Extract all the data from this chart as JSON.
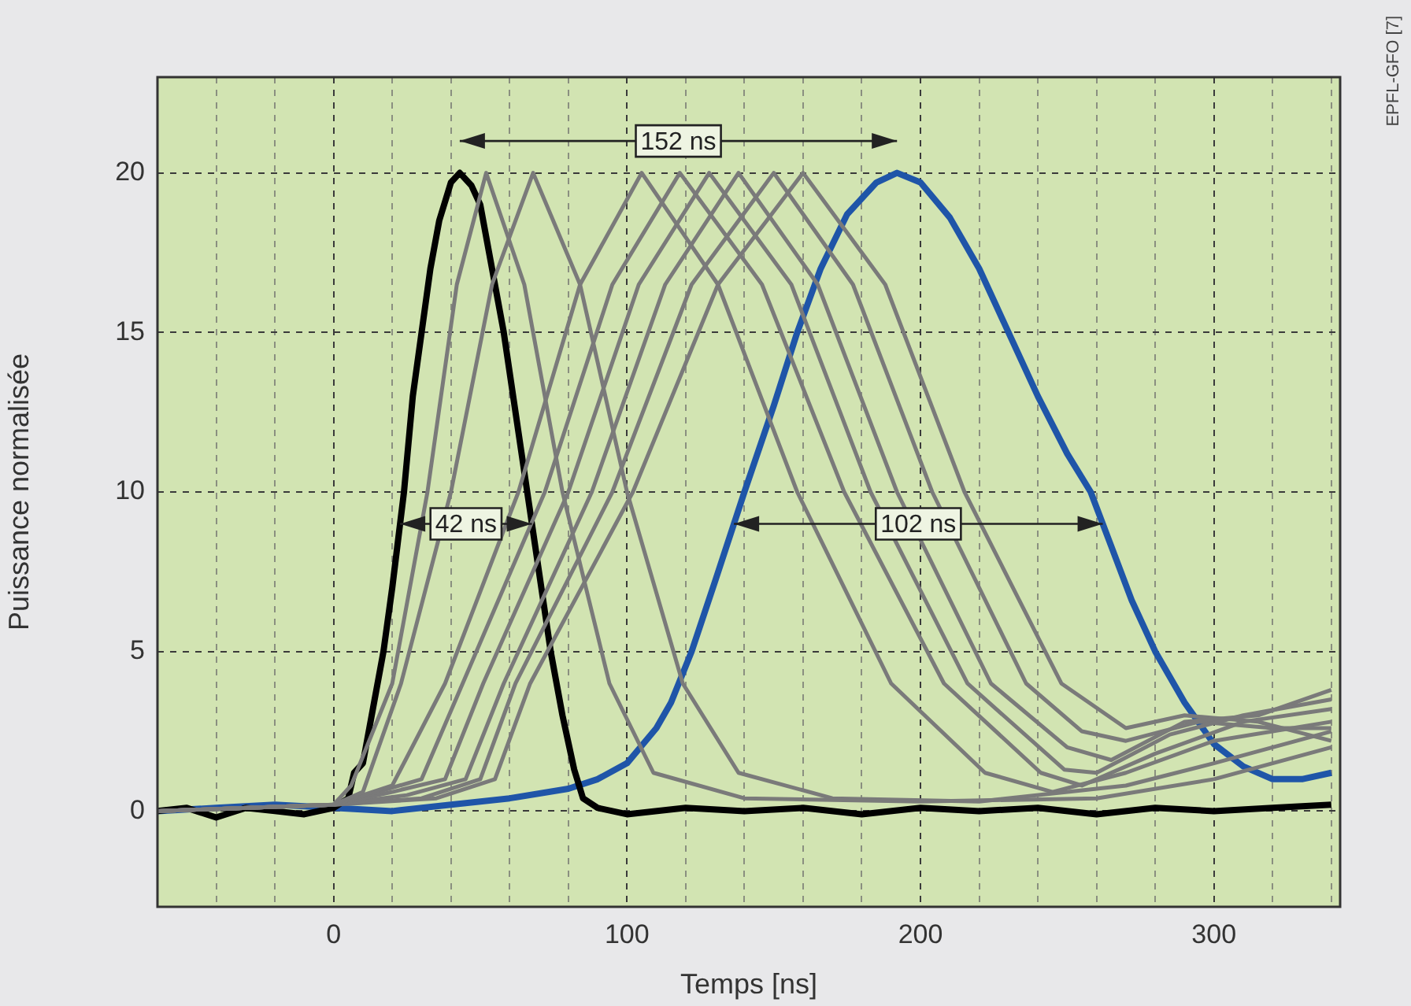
{
  "chart_data": {
    "type": "line",
    "xlabel": "Temps [ns]",
    "ylabel": "Puissance normalisée",
    "xlim": [
      -60,
      343
    ],
    "ylim": [
      -3,
      23
    ],
    "xticks": [
      {
        "value": -40,
        "label": null
      },
      {
        "value": -20,
        "label": null
      },
      0,
      {
        "value": 20,
        "label": null
      },
      {
        "value": 40,
        "label": null
      },
      {
        "value": 60,
        "label": null
      },
      {
        "value": 80,
        "label": null
      },
      100,
      {
        "value": 120,
        "label": null
      },
      {
        "value": 140,
        "label": null
      },
      {
        "value": 160,
        "label": null
      },
      {
        "value": 180,
        "label": null
      },
      200,
      {
        "value": 220,
        "label": null
      },
      {
        "value": 240,
        "label": null
      },
      {
        "value": 260,
        "label": null
      },
      {
        "value": 280,
        "label": null
      },
      300,
      {
        "value": 320,
        "label": null
      },
      {
        "value": 340,
        "label": null
      }
    ],
    "yticks": [
      0,
      5,
      10,
      15,
      20
    ],
    "grid": true,
    "legend": false,
    "series": [
      {
        "color": "#7a7a7a",
        "x": [
          -60,
          0,
          6,
          20,
          32,
          42,
          52,
          65,
          78,
          94,
          109,
          140,
          200,
          260,
          300,
          340
        ],
        "values": [
          0,
          0.2,
          0.8,
          4,
          10,
          16.5,
          20,
          16.5,
          10,
          4,
          1.2,
          0.4,
          0.3,
          0.4,
          1,
          2
        ]
      },
      {
        "color": "#7a7a7a",
        "x": [
          -60,
          0,
          10,
          23,
          40,
          54,
          68,
          84,
          100,
          119,
          138,
          170,
          220,
          270,
          300,
          340
        ],
        "values": [
          0,
          0.2,
          0.6,
          4,
          10,
          16.5,
          20,
          16.5,
          10,
          4,
          1.2,
          0.4,
          0.3,
          0.8,
          1.5,
          2.5
        ]
      },
      {
        "color": "#7a7a7a",
        "x": [
          -60,
          0,
          10,
          20,
          38,
          63,
          84,
          105,
          131,
          158,
          190,
          222,
          245,
          270,
          300,
          340
        ],
        "values": [
          0,
          0.2,
          0.5,
          0.8,
          4,
          10,
          16.5,
          20,
          16.5,
          10,
          4,
          1.2,
          0.6,
          1.2,
          2.2,
          2.8
        ]
      },
      {
        "color": "#7a7a7a",
        "x": [
          -60,
          0,
          15,
          30,
          44,
          72,
          95,
          118,
          146,
          174,
          208,
          241,
          255,
          280,
          310,
          340
        ],
        "values": [
          0,
          0.2,
          0.6,
          1,
          4,
          10,
          16.5,
          20,
          16.5,
          10,
          4,
          1.2,
          0.8,
          1.8,
          2.8,
          3.2
        ]
      },
      {
        "color": "#7a7a7a",
        "x": [
          -60,
          0,
          20,
          38,
          51,
          80,
          104,
          128,
          156,
          183,
          216,
          249,
          260,
          285,
          310,
          340
        ],
        "values": [
          0,
          0.2,
          0.6,
          1,
          4,
          10,
          16.5,
          20,
          16.5,
          10,
          4,
          1.3,
          1.2,
          2.4,
          3,
          3.5
        ]
      },
      {
        "color": "#7a7a7a",
        "x": [
          -60,
          0,
          25,
          45,
          58,
          88,
          113,
          138,
          165,
          192,
          224,
          250,
          265,
          290,
          315,
          340
        ],
        "values": [
          0,
          0.2,
          0.5,
          1,
          4,
          10,
          16.5,
          20,
          16.5,
          10,
          4,
          2,
          1.6,
          2.8,
          3,
          3.8
        ]
      },
      {
        "color": "#7a7a7a",
        "x": [
          -60,
          0,
          30,
          50,
          62,
          95,
          122,
          150,
          177,
          204,
          236,
          255,
          270,
          295,
          320,
          340
        ],
        "values": [
          0,
          0.2,
          0.4,
          1,
          4,
          10,
          16.5,
          20,
          16.5,
          10,
          4,
          2.5,
          2.2,
          2.8,
          2.6,
          2.6
        ]
      },
      {
        "color": "#7a7a7a",
        "x": [
          -60,
          0,
          35,
          55,
          67,
          102,
          131,
          160,
          188,
          215,
          248,
          270,
          290,
          315,
          340
        ],
        "values": [
          0,
          0.2,
          0.4,
          1,
          4,
          10,
          16.5,
          20,
          16.5,
          10,
          4,
          2.6,
          3,
          2.8,
          2.2
        ]
      },
      {
        "color": "#000000",
        "x": [
          -60,
          -50,
          -40,
          -30,
          -20,
          -10,
          0,
          5,
          7,
          10,
          13,
          17,
          20,
          24,
          27,
          30,
          33,
          36,
          40,
          43,
          47,
          50,
          54,
          58,
          62,
          66,
          70,
          74,
          78,
          82,
          85,
          90,
          100,
          120,
          140,
          160,
          180,
          200,
          220,
          240,
          260,
          280,
          300,
          320,
          340
        ],
        "values": [
          0,
          0.1,
          -0.2,
          0.1,
          0,
          -0.1,
          0.1,
          0.4,
          1.2,
          1.5,
          3,
          5,
          7,
          10,
          13,
          15,
          17,
          18.5,
          19.7,
          20,
          19.6,
          19,
          17,
          15,
          12.5,
          10,
          7.5,
          5,
          3,
          1.3,
          0.4,
          0.1,
          -0.1,
          0.1,
          0,
          0.1,
          -0.1,
          0.1,
          0,
          0.1,
          -0.1,
          0.1,
          0,
          0.1,
          0.2
        ]
      },
      {
        "color": "#1f55a8",
        "x": [
          -60,
          -40,
          -20,
          0,
          20,
          40,
          60,
          80,
          90,
          100,
          110,
          115,
          122,
          130,
          140,
          150,
          158,
          166,
          175,
          185,
          192,
          200,
          210,
          220,
          230,
          240,
          250,
          258,
          265,
          272,
          280,
          290,
          300,
          310,
          320,
          330,
          340
        ],
        "values": [
          0,
          0.1,
          0.2,
          0.1,
          0,
          0.2,
          0.4,
          0.7,
          1,
          1.5,
          2.6,
          3.4,
          5,
          7.2,
          10,
          12.7,
          15,
          17,
          18.7,
          19.7,
          20,
          19.7,
          18.6,
          17,
          15,
          13,
          11.2,
          10,
          8.3,
          6.6,
          5,
          3.4,
          2.1,
          1.4,
          1,
          1,
          1.2
        ]
      }
    ],
    "annotations": [
      "152 ns",
      "42 ns",
      "102 ns",
      "EPFL-GFO [7]"
    ]
  }
}
